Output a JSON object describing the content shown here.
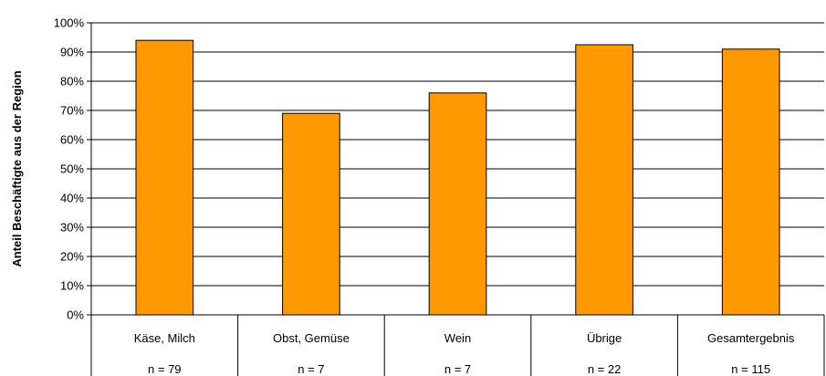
{
  "chart_data": {
    "type": "bar",
    "title": "",
    "xlabel": "",
    "ylabel": "Anteil Beschäftigte aus der Region",
    "categories": [
      "Käse, Milch",
      "Obst, Gemüse",
      "Wein",
      "Übrige",
      "Gesamtergebnis"
    ],
    "sample_sizes": [
      "n = 79",
      "n = 7",
      "n = 7",
      "n = 22",
      "n = 115"
    ],
    "values": [
      94,
      69,
      76,
      92.5,
      91
    ],
    "ylim": [
      0,
      100
    ],
    "yticks": [
      0,
      10,
      20,
      30,
      40,
      50,
      60,
      70,
      80,
      90,
      100
    ],
    "ytick_labels": [
      "0%",
      "10%",
      "20%",
      "30%",
      "40%",
      "50%",
      "60%",
      "70%",
      "80%",
      "90%",
      "100%"
    ],
    "y_unit": "%",
    "grid": true,
    "legend": "none",
    "colors": {
      "bar_fill": "#FF9900",
      "bar_stroke": "#000000",
      "grid": "#000000",
      "axis": "#000000"
    }
  }
}
